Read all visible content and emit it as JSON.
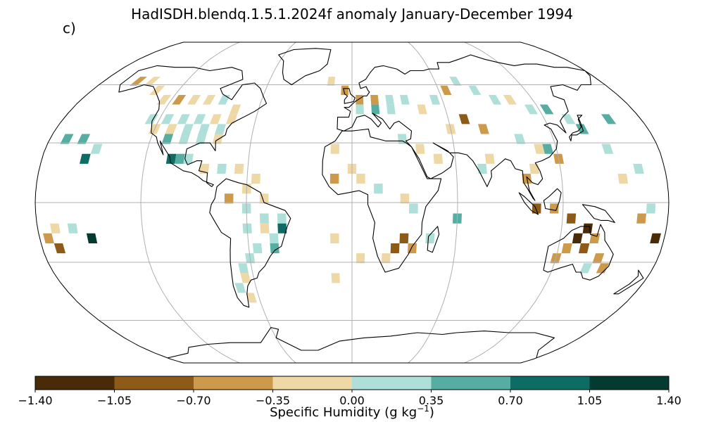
{
  "title": "HadISDH.blendq.1.5.1.2024f anomaly January-December 1994",
  "panel_label": "c)",
  "projection": "Robinson",
  "colorbar": {
    "label_main": "Specific Humidity (g kg",
    "label_exp": "−1",
    "label_close": ")",
    "ticks": [
      "−1.40",
      "−1.05",
      "−0.70",
      "−0.35",
      "0.00",
      "0.35",
      "0.70",
      "1.05",
      "1.40"
    ],
    "bins": [
      {
        "min": -1.4,
        "max": -1.05,
        "color": "#4a2b08"
      },
      {
        "min": -1.05,
        "max": -0.7,
        "color": "#8e5a17"
      },
      {
        "min": -0.7,
        "max": -0.35,
        "color": "#cd9a4c"
      },
      {
        "min": -0.35,
        "max": 0.0,
        "color": "#eed8a6"
      },
      {
        "min": 0.0,
        "max": 0.35,
        "color": "#aedfd9"
      },
      {
        "min": 0.35,
        "max": 0.7,
        "color": "#55aea1"
      },
      {
        "min": 0.7,
        "max": 1.05,
        "color": "#0d6c63"
      },
      {
        "min": 1.05,
        "max": 1.4,
        "color": "#033b30"
      }
    ]
  },
  "grid_anomalies": [
    {
      "lon": -155,
      "lat": 62,
      "v": -0.5
    },
    {
      "lon": -145,
      "lat": 62,
      "v": -0.2
    },
    {
      "lon": -135,
      "lat": 57,
      "v": -0.2
    },
    {
      "lon": -125,
      "lat": 52,
      "v": -0.2
    },
    {
      "lon": -115,
      "lat": 52,
      "v": -0.5
    },
    {
      "lon": -105,
      "lat": 52,
      "v": -0.2
    },
    {
      "lon": -95,
      "lat": 52,
      "v": -0.2
    },
    {
      "lon": -85,
      "lat": 52,
      "v": 0.2
    },
    {
      "lon": -75,
      "lat": 47,
      "v": -0.2
    },
    {
      "lon": -125,
      "lat": 42,
      "v": 0.2
    },
    {
      "lon": -115,
      "lat": 42,
      "v": 0.2
    },
    {
      "lon": -105,
      "lat": 42,
      "v": 0.2
    },
    {
      "lon": -95,
      "lat": 42,
      "v": 0.2
    },
    {
      "lon": -85,
      "lat": 42,
      "v": -0.2
    },
    {
      "lon": -75,
      "lat": 42,
      "v": -0.2
    },
    {
      "lon": -120,
      "lat": 37,
      "v": -0.2
    },
    {
      "lon": -110,
      "lat": 37,
      "v": -0.2
    },
    {
      "lon": -100,
      "lat": 37,
      "v": 0.2
    },
    {
      "lon": -90,
      "lat": 37,
      "v": 0.2
    },
    {
      "lon": -80,
      "lat": 37,
      "v": 0.2
    },
    {
      "lon": -110,
      "lat": 32,
      "v": 0.5
    },
    {
      "lon": -100,
      "lat": 32,
      "v": 0.2
    },
    {
      "lon": -90,
      "lat": 32,
      "v": 0.2
    },
    {
      "lon": -80,
      "lat": 32,
      "v": -0.2
    },
    {
      "lon": -105,
      "lat": 22,
      "v": 0.9
    },
    {
      "lon": -100,
      "lat": 22,
      "v": 0.5
    },
    {
      "lon": -95,
      "lat": 22,
      "v": 0.2
    },
    {
      "lon": -155,
      "lat": 22,
      "v": 0.9
    },
    {
      "lon": -150,
      "lat": 27,
      "v": 0.2
    },
    {
      "lon": -160,
      "lat": 32,
      "v": 0.5
    },
    {
      "lon": -170,
      "lat": 32,
      "v": 0.5
    },
    {
      "lon": -85,
      "lat": 17,
      "v": -0.2
    },
    {
      "lon": -75,
      "lat": 17,
      "v": 0.2
    },
    {
      "lon": -65,
      "lat": 17,
      "v": -0.2
    },
    {
      "lon": -55,
      "lat": 12,
      "v": -0.2
    },
    {
      "lon": -60,
      "lat": 7,
      "v": -0.2
    },
    {
      "lon": -50,
      "lat": 2,
      "v": -0.2
    },
    {
      "lon": -70,
      "lat": 2,
      "v": -0.5
    },
    {
      "lon": -60,
      "lat": -3,
      "v": 0.2
    },
    {
      "lon": -50,
      "lat": -8,
      "v": 0.2
    },
    {
      "lon": -40,
      "lat": -8,
      "v": 0.2
    },
    {
      "lon": -60,
      "lat": -13,
      "v": 0.2
    },
    {
      "lon": -50,
      "lat": -13,
      "v": -0.2
    },
    {
      "lon": -40,
      "lat": -13,
      "v": 0.9
    },
    {
      "lon": -45,
      "lat": -18,
      "v": 0.2
    },
    {
      "lon": -55,
      "lat": -23,
      "v": 0.2
    },
    {
      "lon": -45,
      "lat": -23,
      "v": 0.5
    },
    {
      "lon": -60,
      "lat": -28,
      "v": 0.2
    },
    {
      "lon": -65,
      "lat": -33,
      "v": 0.2
    },
    {
      "lon": -65,
      "lat": -38,
      "v": -0.2
    },
    {
      "lon": -70,
      "lat": -43,
      "v": 0.2
    },
    {
      "lon": -65,
      "lat": -48,
      "v": -0.2
    },
    {
      "lon": -160,
      "lat": -13,
      "v": 0.2
    },
    {
      "lon": -170,
      "lat": -13,
      "v": -0.2
    },
    {
      "lon": -150,
      "lat": -18,
      "v": 1.2
    },
    {
      "lon": -175,
      "lat": -18,
      "v": -0.5
    },
    {
      "lon": -170,
      "lat": -23,
      "v": -0.9
    },
    {
      "lon": -15,
      "lat": 62,
      "v": -0.2
    },
    {
      "lon": -5,
      "lat": 57,
      "v": -0.5
    },
    {
      "lon": 5,
      "lat": 52,
      "v": -0.5
    },
    {
      "lon": 15,
      "lat": 52,
      "v": -0.5
    },
    {
      "lon": 25,
      "lat": 52,
      "v": 0.2
    },
    {
      "lon": 35,
      "lat": 52,
      "v": 0.2
    },
    {
      "lon": 5,
      "lat": 47,
      "v": 0.2
    },
    {
      "lon": 15,
      "lat": 47,
      "v": 0.5
    },
    {
      "lon": 25,
      "lat": 47,
      "v": 0.2
    },
    {
      "lon": 45,
      "lat": 47,
      "v": -0.2
    },
    {
      "lon": 55,
      "lat": 52,
      "v": 0.2
    },
    {
      "lon": 65,
      "lat": 57,
      "v": -0.5
    },
    {
      "lon": 75,
      "lat": 62,
      "v": 0.2
    },
    {
      "lon": 85,
      "lat": 57,
      "v": 0.2
    },
    {
      "lon": 95,
      "lat": 52,
      "v": 0.2
    },
    {
      "lon": 105,
      "lat": 52,
      "v": -0.2
    },
    {
      "lon": 115,
      "lat": 47,
      "v": 0.2
    },
    {
      "lon": 125,
      "lat": 47,
      "v": 0.5
    },
    {
      "lon": 135,
      "lat": 42,
      "v": 0.2
    },
    {
      "lon": 140,
      "lat": 37,
      "v": 0.5
    },
    {
      "lon": 70,
      "lat": 42,
      "v": -0.9
    },
    {
      "lon": 80,
      "lat": 37,
      "v": -0.5
    },
    {
      "lon": 60,
      "lat": 37,
      "v": -0.2
    },
    {
      "lon": 100,
      "lat": 32,
      "v": 0.2
    },
    {
      "lon": 110,
      "lat": 27,
      "v": -0.2
    },
    {
      "lon": 120,
      "lat": 22,
      "v": -0.5
    },
    {
      "lon": 115,
      "lat": 27,
      "v": 0.5
    },
    {
      "lon": 80,
      "lat": 22,
      "v": -0.2
    },
    {
      "lon": 75,
      "lat": 17,
      "v": 0.2
    },
    {
      "lon": 100,
      "lat": 12,
      "v": -0.5
    },
    {
      "lon": 105,
      "lat": 17,
      "v": -0.2
    },
    {
      "lon": 30,
      "lat": 32,
      "v": 0.2
    },
    {
      "lon": 40,
      "lat": 27,
      "v": -0.2
    },
    {
      "lon": 50,
      "lat": 22,
      "v": -0.2
    },
    {
      "lon": -10,
      "lat": 27,
      "v": -0.2
    },
    {
      "lon": 0,
      "lat": 17,
      "v": -0.2
    },
    {
      "lon": -10,
      "lat": 12,
      "v": -0.5
    },
    {
      "lon": 5,
      "lat": 12,
      "v": -0.2
    },
    {
      "lon": 15,
      "lat": 7,
      "v": 0.2
    },
    {
      "lon": 30,
      "lat": 2,
      "v": -0.2
    },
    {
      "lon": 35,
      "lat": -3,
      "v": 0.2
    },
    {
      "lon": 30,
      "lat": -18,
      "v": -0.9
    },
    {
      "lon": 25,
      "lat": -23,
      "v": -0.9
    },
    {
      "lon": 35,
      "lat": -23,
      "v": -0.5
    },
    {
      "lon": 20,
      "lat": -28,
      "v": -0.2
    },
    {
      "lon": 45,
      "lat": -18,
      "v": 0.2
    },
    {
      "lon": 60,
      "lat": -8,
      "v": 0.5
    },
    {
      "lon": 105,
      "lat": -3,
      "v": -0.9
    },
    {
      "lon": 115,
      "lat": -3,
      "v": -0.5
    },
    {
      "lon": 125,
      "lat": -8,
      "v": -0.9
    },
    {
      "lon": 135,
      "lat": -13,
      "v": -1.2
    },
    {
      "lon": 130,
      "lat": -18,
      "v": -1.2
    },
    {
      "lon": 140,
      "lat": -18,
      "v": -0.5
    },
    {
      "lon": 125,
      "lat": -23,
      "v": -0.5
    },
    {
      "lon": 135,
      "lat": -23,
      "v": -0.9
    },
    {
      "lon": 145,
      "lat": -28,
      "v": -0.5
    },
    {
      "lon": 120,
      "lat": -28,
      "v": -0.5
    },
    {
      "lon": 150,
      "lat": -33,
      "v": -0.5
    },
    {
      "lon": 140,
      "lat": -33,
      "v": 0.2
    },
    {
      "lon": 175,
      "lat": -18,
      "v": -1.2
    },
    {
      "lon": 165,
      "lat": -8,
      "v": -0.5
    },
    {
      "lon": 170,
      "lat": -3,
      "v": 0.2
    },
    {
      "lon": 155,
      "lat": 12,
      "v": -0.2
    },
    {
      "lon": 165,
      "lat": 17,
      "v": 0.2
    },
    {
      "lon": 150,
      "lat": 27,
      "v": 0.2
    },
    {
      "lon": 160,
      "lat": 42,
      "v": 0.5
    },
    {
      "lon": -10,
      "lat": -18,
      "v": -0.2
    },
    {
      "lon": -10,
      "lat": -38,
      "v": -0.2
    },
    {
      "lon": 5,
      "lat": -28,
      "v": -0.2
    }
  ]
}
